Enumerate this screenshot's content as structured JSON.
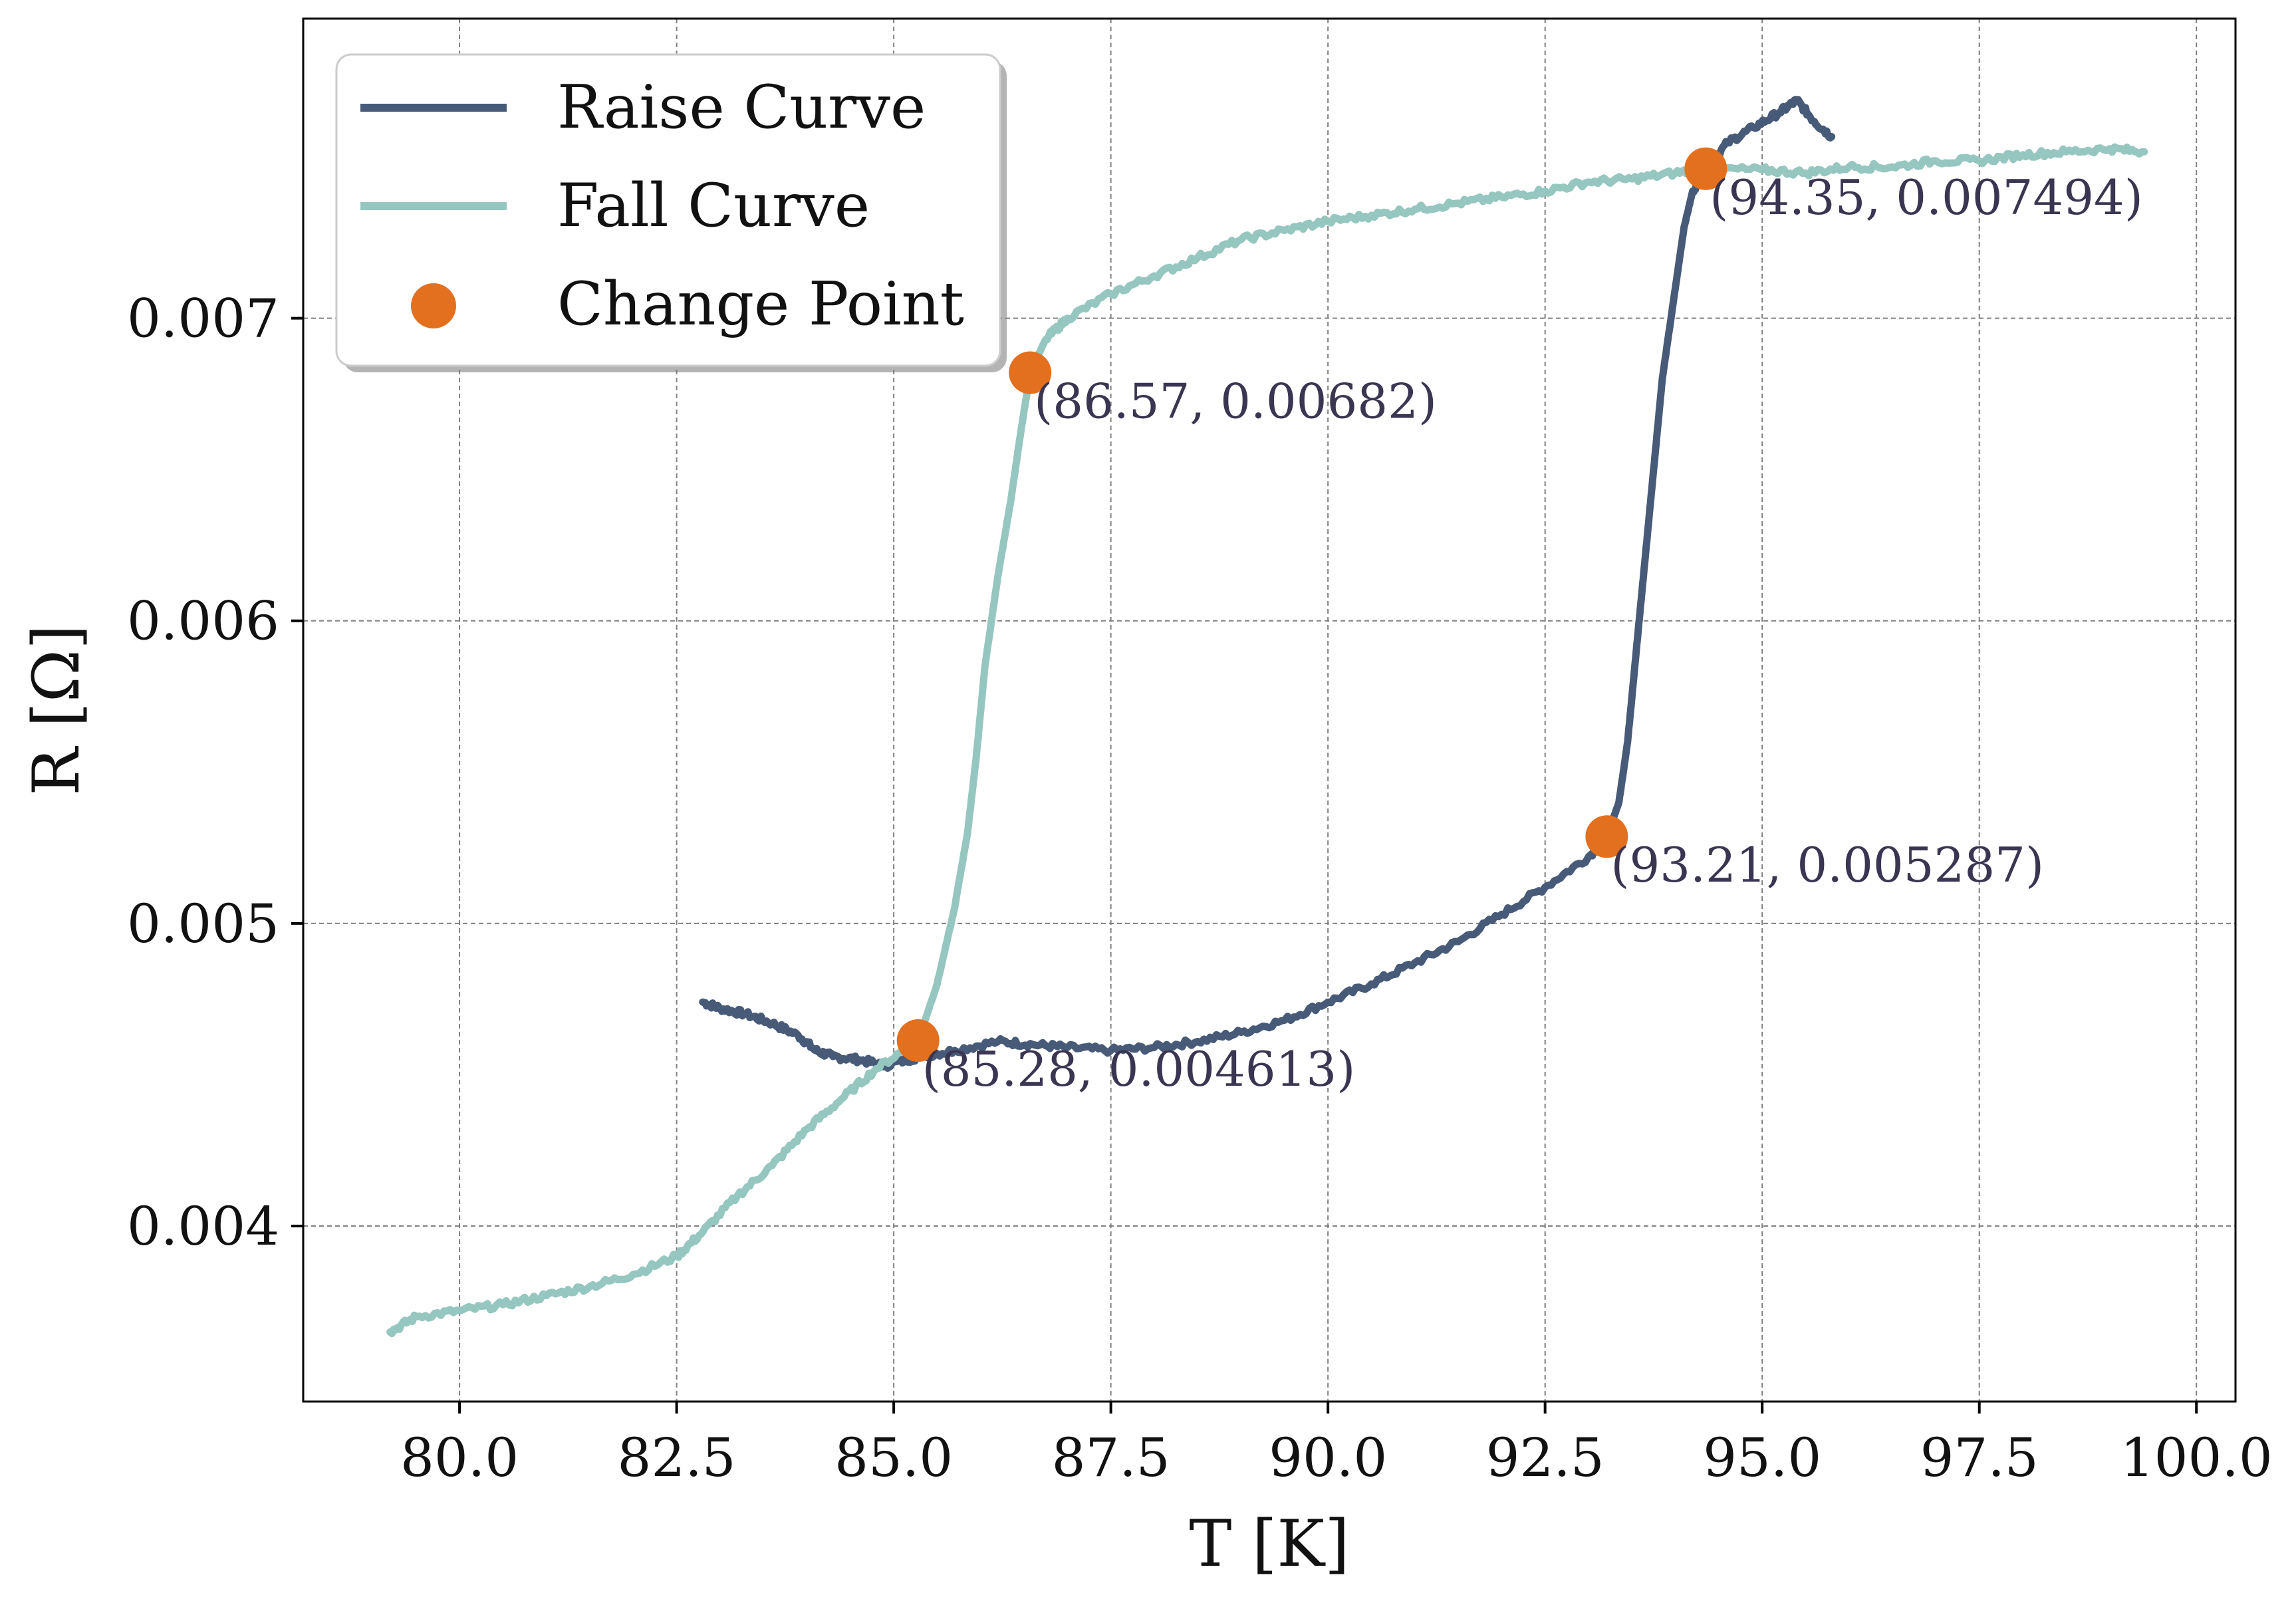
{
  "chart_data": {
    "type": "line",
    "xlabel": "T [K]",
    "ylabel": "R [Ω]",
    "xlim": [
      78.2,
      100.45
    ],
    "ylim": [
      0.00342,
      0.00799
    ],
    "x_ticks": [
      80.0,
      82.5,
      85.0,
      87.5,
      90.0,
      92.5,
      95.0,
      97.5,
      100.0
    ],
    "x_tick_labels": [
      "80.0",
      "82.5",
      "85.0",
      "87.5",
      "90.0",
      "92.5",
      "95.0",
      "97.5",
      "100.0"
    ],
    "y_ticks": [
      0.004,
      0.005,
      0.006,
      0.007
    ],
    "y_tick_labels": [
      "0.004",
      "0.005",
      "0.006",
      "0.007"
    ],
    "grid": true,
    "legend_position": "top-left",
    "series": [
      {
        "name": "Raise Curve",
        "color": "#475a78",
        "x": [
          82.8,
          83.0,
          83.3,
          83.6,
          83.9,
          84.1,
          84.3,
          84.6,
          84.9,
          85.3,
          85.7,
          86.2,
          86.6,
          87.0,
          87.5,
          88.0,
          88.5,
          89.0,
          89.5,
          90.0,
          90.5,
          91.0,
          91.5,
          92.0,
          92.5,
          93.0,
          93.21,
          93.35,
          93.45,
          93.55,
          93.65,
          93.75,
          93.85,
          94.0,
          94.1,
          94.2,
          94.35,
          94.6,
          94.9,
          95.2,
          95.4,
          95.6,
          95.8
        ],
        "y": [
          0.00474,
          0.00472,
          0.0047,
          0.00467,
          0.00463,
          0.00458,
          0.00456,
          0.00455,
          0.00453,
          0.00456,
          0.00458,
          0.00461,
          0.0046,
          0.00459,
          0.00458,
          0.00459,
          0.00461,
          0.00464,
          0.00468,
          0.00474,
          0.0048,
          0.00487,
          0.00494,
          0.00503,
          0.00512,
          0.00522,
          0.005287,
          0.0054,
          0.0056,
          0.0059,
          0.0062,
          0.0065,
          0.0068,
          0.0071,
          0.0073,
          0.00742,
          0.007494,
          0.00758,
          0.00763,
          0.00768,
          0.00772,
          0.00765,
          0.0076
        ]
      },
      {
        "name": "Fall Curve",
        "color": "#96c6c0",
        "x": [
          79.2,
          79.5,
          80.0,
          80.5,
          81.0,
          81.5,
          82.0,
          82.5,
          82.8,
          83.2,
          83.6,
          84.0,
          84.4,
          84.8,
          85.28,
          85.5,
          85.7,
          85.85,
          85.95,
          86.05,
          86.2,
          86.35,
          86.45,
          86.57,
          86.75,
          87.0,
          87.5,
          88.0,
          88.5,
          89.0,
          89.5,
          90.0,
          90.5,
          91.0,
          91.5,
          92.0,
          92.5,
          93.0,
          93.5,
          94.0,
          94.35,
          95.0,
          95.5,
          96.0,
          96.5,
          97.0,
          97.5,
          98.0,
          98.5,
          99.0,
          99.4
        ],
        "y": [
          0.00365,
          0.0037,
          0.00372,
          0.00374,
          0.00377,
          0.0038,
          0.00384,
          0.0039,
          0.00398,
          0.0041,
          0.0042,
          0.00432,
          0.00442,
          0.00452,
          0.004613,
          0.0048,
          0.00505,
          0.0053,
          0.00555,
          0.00585,
          0.00615,
          0.0064,
          0.0066,
          0.00682,
          0.00693,
          0.007,
          0.00708,
          0.00714,
          0.0072,
          0.00726,
          0.00729,
          0.00732,
          0.00734,
          0.00736,
          0.00738,
          0.0074,
          0.00742,
          0.00745,
          0.00746,
          0.00748,
          0.007494,
          0.00749,
          0.00748,
          0.0075,
          0.0075,
          0.00752,
          0.00752,
          0.00754,
          0.00755,
          0.00756,
          0.00755
        ]
      }
    ],
    "change_points": {
      "name": "Change Point",
      "color": "#e2701f",
      "points": [
        {
          "x": 86.57,
          "y": 0.00682,
          "label": "(86.57, 0.00682)"
        },
        {
          "x": 85.28,
          "y": 0.004613,
          "label": "(85.28, 0.004613)"
        },
        {
          "x": 93.21,
          "y": 0.005287,
          "label": "(93.21, 0.005287)"
        },
        {
          "x": 94.35,
          "y": 0.007494,
          "label": "(94.35, 0.007494)"
        }
      ]
    }
  }
}
